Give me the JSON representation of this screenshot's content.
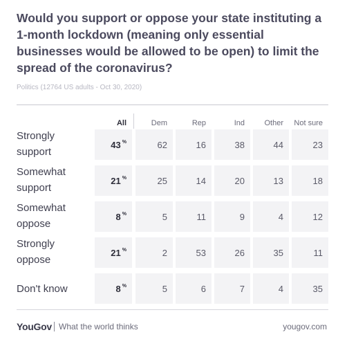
{
  "title": "Would you support or oppose your state instituting a 1-month lockdown (meaning only essential businesses would be allowed to be open) to limit the spread of the coronavirus?",
  "subtitle": "Politics (12764 US adults - Oct 30, 2020)",
  "chart_data": {
    "type": "table",
    "columns": [
      "All",
      "Dem",
      "Rep",
      "Ind",
      "Other",
      "Not sure"
    ],
    "rows": [
      {
        "label_lines": [
          "Strongly",
          "support"
        ],
        "all": "43",
        "values": [
          62,
          16,
          38,
          44,
          23
        ]
      },
      {
        "label_lines": [
          "Somewhat",
          "support"
        ],
        "all": "21",
        "values": [
          25,
          14,
          20,
          13,
          18
        ]
      },
      {
        "label_lines": [
          "Somewhat",
          "oppose"
        ],
        "all": "8",
        "values": [
          5,
          11,
          9,
          4,
          12
        ]
      },
      {
        "label_lines": [
          "Strongly",
          "oppose"
        ],
        "all": "21",
        "values": [
          2,
          53,
          26,
          35,
          11
        ]
      },
      {
        "label_lines": [
          "Don't know"
        ],
        "all": "8",
        "values": [
          5,
          6,
          7,
          4,
          35
        ]
      }
    ],
    "unit_symbol": "%"
  },
  "footer": {
    "brand": "YouGov",
    "tagline": "What the world thinks",
    "site": "yougov.com"
  }
}
